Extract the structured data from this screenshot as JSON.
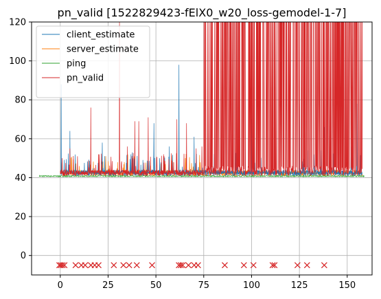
{
  "chart_data": {
    "type": "line",
    "title": "pn_valid [1522829423-fElX0_w20_loss-gemodel-1-7]",
    "xlabel": "",
    "ylabel": "",
    "xlim": [
      -15,
      163
    ],
    "ylim": [
      -10,
      120
    ],
    "xticks": [
      0,
      25,
      50,
      75,
      100,
      125,
      150
    ],
    "yticks": [
      0,
      20,
      40,
      60,
      80,
      100,
      120
    ],
    "grid": true,
    "legend": "top-left",
    "series": [
      {
        "name": "client_estimate",
        "color": "#1f77b4",
        "baseline": 41,
        "x_range": [
          0,
          158
        ],
        "spikes": [
          [
            0.5,
            88
          ],
          [
            5,
            64
          ],
          [
            22,
            58
          ],
          [
            37,
            52
          ],
          [
            49,
            68
          ],
          [
            52,
            50
          ],
          [
            57,
            56
          ],
          [
            62,
            98
          ],
          [
            70,
            61
          ],
          [
            78,
            44
          ],
          [
            100,
            70
          ],
          [
            125,
            78
          ],
          [
            138,
            66
          ],
          [
            155,
            78
          ]
        ]
      },
      {
        "name": "server_estimate",
        "color": "#ff7f0e",
        "baseline": 41,
        "x_range": [
          0,
          158
        ],
        "spikes": [
          [
            10,
            46
          ],
          [
            30,
            48
          ],
          [
            55,
            47
          ],
          [
            90,
            45
          ],
          [
            130,
            46
          ]
        ]
      },
      {
        "name": "ping",
        "color": "#2ca02c",
        "baseline": 40.5,
        "x_range": [
          -11,
          159
        ],
        "spikes": []
      },
      {
        "name": "pn_valid",
        "color": "#d62728",
        "baseline": 41,
        "x_range": [
          0,
          158
        ],
        "spikes": [
          [
            1,
            50
          ],
          [
            5,
            55
          ],
          [
            16,
            76
          ],
          [
            20,
            52
          ],
          [
            31,
            120
          ],
          [
            35,
            56
          ],
          [
            39,
            69
          ],
          [
            41,
            69
          ],
          [
            46,
            71
          ],
          [
            54,
            52
          ],
          [
            61,
            70
          ],
          [
            66,
            68
          ],
          [
            71,
            55
          ],
          [
            74,
            56
          ]
        ],
        "saturated_from": 75,
        "saturated_to": 158
      },
      {
        "name": "loss_markers",
        "color": "#d62728",
        "marker": "x",
        "y": -5,
        "x": [
          -0.5,
          0.3,
          1.2,
          2.2,
          8,
          11,
          13,
          16,
          18,
          20,
          28,
          33,
          36,
          40,
          48,
          62,
          63,
          64,
          67,
          70,
          72,
          86,
          96,
          101,
          111,
          112,
          124,
          129,
          138
        ]
      }
    ]
  }
}
